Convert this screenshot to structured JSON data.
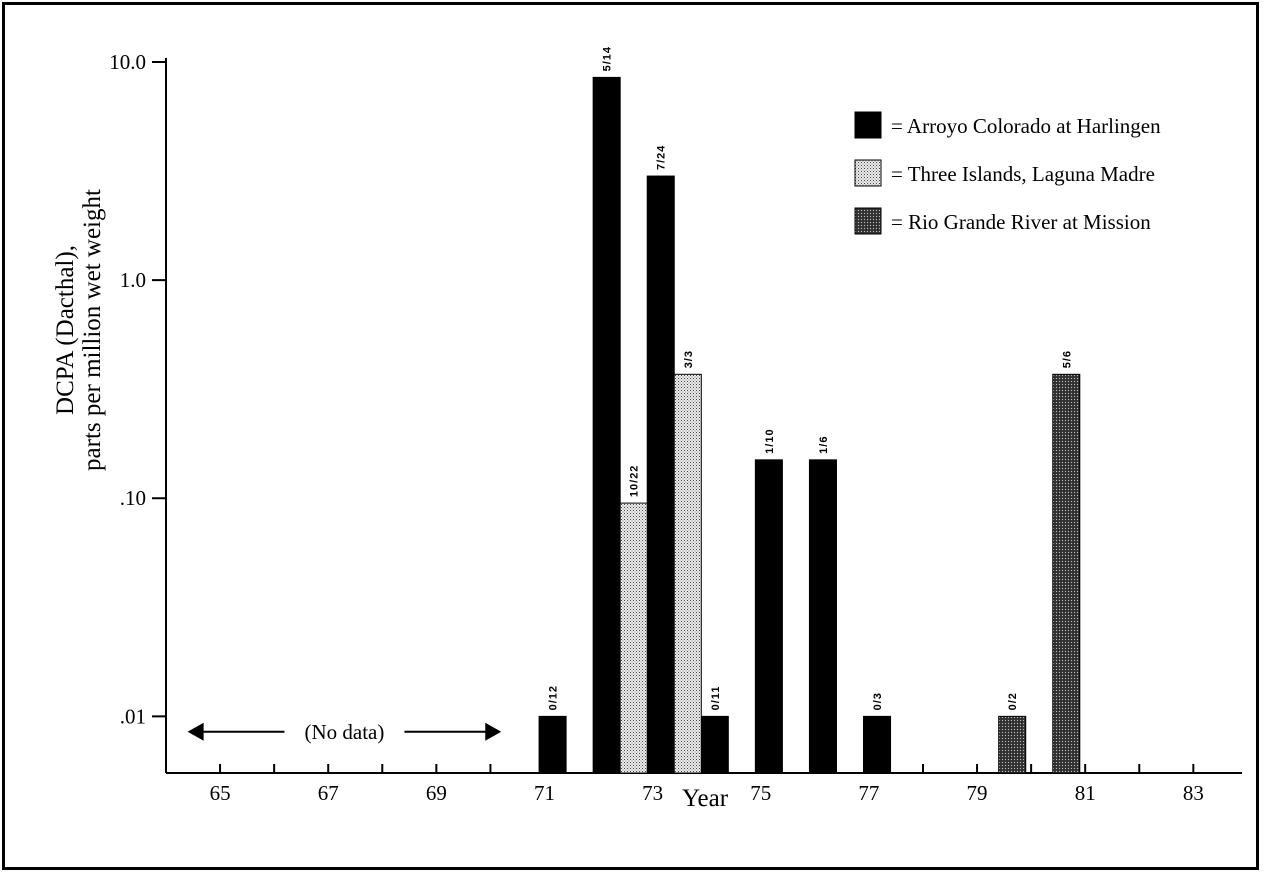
{
  "chart_data": {
    "type": "bar",
    "title": "",
    "xlabel": "Year",
    "ylabel_line1": "DCPA (Dacthal),",
    "ylabel_line2": "parts per million wet weight",
    "yscale": "log",
    "ylim": [
      0.0055,
      10
    ],
    "xlim": [
      64,
      83.9
    ],
    "yticks": [
      {
        "value": 0.01,
        "label": ".01"
      },
      {
        "value": 0.1,
        "label": ".10"
      },
      {
        "value": 1,
        "label": "1.0"
      },
      {
        "value": 10,
        "label": "10.0"
      }
    ],
    "xticks": [
      {
        "value": 65,
        "label": "65"
      },
      {
        "value": 67,
        "label": "67"
      },
      {
        "value": 69,
        "label": "69"
      },
      {
        "value": 71,
        "label": "71"
      },
      {
        "value": 73,
        "label": "73"
      },
      {
        "value": 75,
        "label": "75"
      },
      {
        "value": 77,
        "label": "77"
      },
      {
        "value": 79,
        "label": "79"
      },
      {
        "value": 81,
        "label": "81"
      },
      {
        "value": 83,
        "label": "83"
      }
    ],
    "minor_xticks": [
      66,
      68,
      70,
      72,
      74,
      76,
      78,
      80,
      82
    ],
    "legend_position": "top-right",
    "series": [
      {
        "name": "Arroyo Colorado at Harlingen",
        "legend_label": "= Arroyo Colorado at Harlingen",
        "color": "#000000",
        "pattern": "solid",
        "points": [
          {
            "x": 70.9,
            "y": 0.01,
            "label": "0/12"
          },
          {
            "x": 71.9,
            "y": 8.5,
            "label": "5/14"
          },
          {
            "x": 72.9,
            "y": 3.0,
            "label": "7/24"
          },
          {
            "x": 73.9,
            "y": 0.01,
            "label": "0/11"
          },
          {
            "x": 74.9,
            "y": 0.15,
            "label": "1/10"
          },
          {
            "x": 75.9,
            "y": 0.15,
            "label": "1/6"
          },
          {
            "x": 76.9,
            "y": 0.01,
            "label": "0/3"
          }
        ]
      },
      {
        "name": "Three Islands, Laguna Madre",
        "legend_label": "= Three Islands, Laguna Madre",
        "color": "#cfcfcf",
        "pattern": "light-stipple",
        "points": [
          {
            "x": 72.4,
            "y": 0.095,
            "label": "10/22"
          },
          {
            "x": 73.4,
            "y": 0.37,
            "label": "3/3"
          }
        ]
      },
      {
        "name": "Rio Grande River at Mission",
        "legend_label": "= Rio Grande River at Mission",
        "color": "#505050",
        "pattern": "dark-stipple",
        "points": [
          {
            "x": 79.4,
            "y": 0.01,
            "label": "0/2"
          },
          {
            "x": 80.4,
            "y": 0.37,
            "label": "5/6"
          }
        ]
      }
    ],
    "annotations": [
      {
        "text": "(No data)",
        "x_start": 64.4,
        "x_end": 70.2,
        "y": 0.0085
      }
    ]
  }
}
